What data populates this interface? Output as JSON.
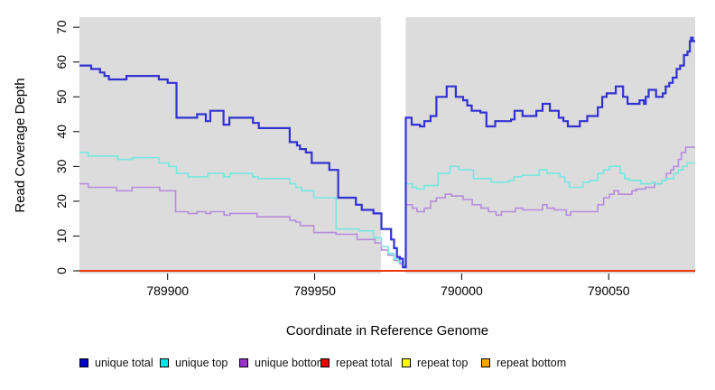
{
  "chart_data": {
    "type": "line",
    "line_style": "step",
    "title": "",
    "xlabel": "Coordinate in Reference Genome",
    "ylabel": "Read Coverage Depth",
    "xlim": [
      789870,
      790079.4
    ],
    "ylim": [
      0,
      73
    ],
    "x_ticks": [
      789900,
      789950,
      790000,
      790050
    ],
    "y_ticks": [
      0,
      10,
      20,
      30,
      40,
      50,
      60,
      70
    ],
    "grid": false,
    "plot_background": "#DCDCDC",
    "page_background": "#FFFFFF",
    "gap_band": {
      "x_start": 789972.5,
      "x_end": 789981,
      "color": "#FFFFFF"
    },
    "legend_position": "bottom",
    "series": [
      {
        "name": "unique total",
        "color": "#0000CD",
        "line_color": "#3232D2",
        "line_width": 2.2,
        "points": [
          [
            789870,
            59
          ],
          [
            789874,
            58
          ],
          [
            789877,
            57
          ],
          [
            789878.5,
            56
          ],
          [
            789880,
            55
          ],
          [
            789886,
            56
          ],
          [
            789897,
            55
          ],
          [
            789900,
            54
          ],
          [
            789903,
            44
          ],
          [
            789910,
            45
          ],
          [
            789913,
            43
          ],
          [
            789914.5,
            46
          ],
          [
            789919,
            42
          ],
          [
            789921,
            44
          ],
          [
            789929,
            42.5
          ],
          [
            789931,
            41
          ],
          [
            789941.5,
            37
          ],
          [
            789944,
            36
          ],
          [
            789945,
            35
          ],
          [
            789947,
            34
          ],
          [
            789949,
            31
          ],
          [
            789955,
            29
          ],
          [
            789958,
            21
          ],
          [
            789964,
            19
          ],
          [
            789966,
            17.5
          ],
          [
            789970,
            16.5
          ],
          [
            789972.7,
            12
          ],
          [
            789976,
            9
          ],
          [
            789977,
            6.5
          ],
          [
            789978,
            4
          ],
          [
            789979,
            3.5
          ],
          [
            789980,
            1
          ],
          [
            789981,
            44
          ],
          [
            789983,
            42
          ],
          [
            789985.8,
            41.5
          ],
          [
            789987.3,
            43
          ],
          [
            789989.4,
            44.5
          ],
          [
            789991.4,
            50
          ],
          [
            789994.9,
            53
          ],
          [
            789998,
            50
          ],
          [
            790000.5,
            49
          ],
          [
            790001.9,
            47.5
          ],
          [
            790003.4,
            46
          ],
          [
            790006.4,
            45.5
          ],
          [
            790008.4,
            41.5
          ],
          [
            790011.4,
            43
          ],
          [
            790016.8,
            43.5
          ],
          [
            790018,
            46
          ],
          [
            790020.7,
            44.5
          ],
          [
            790025.4,
            46
          ],
          [
            790027.5,
            48
          ],
          [
            790030,
            46
          ],
          [
            790033,
            44
          ],
          [
            790034.6,
            43
          ],
          [
            790036.1,
            41.5
          ],
          [
            790040.2,
            43
          ],
          [
            790042.7,
            44.5
          ],
          [
            790046.3,
            47
          ],
          [
            790047.8,
            50
          ],
          [
            790049.3,
            51
          ],
          [
            790052.4,
            53
          ],
          [
            790054.9,
            50
          ],
          [
            790056.4,
            48
          ],
          [
            790060.5,
            49
          ],
          [
            790062,
            48
          ],
          [
            790062.6,
            50
          ],
          [
            790063.6,
            52
          ],
          [
            790066.1,
            50
          ],
          [
            790068.4,
            51
          ],
          [
            790069.4,
            53
          ],
          [
            790070.6,
            54
          ],
          [
            790071.8,
            55.5
          ],
          [
            790073.1,
            58
          ],
          [
            790074.3,
            59
          ],
          [
            790075.6,
            62
          ],
          [
            790076.8,
            63
          ],
          [
            790077.6,
            66
          ],
          [
            790078,
            67
          ],
          [
            790078.6,
            66
          ]
        ]
      },
      {
        "name": "unique top",
        "color": "#00E5E5",
        "line_color": "#76E7E0",
        "line_width": 1.6,
        "points": [
          [
            789870,
            34
          ],
          [
            789873,
            33
          ],
          [
            789883,
            32
          ],
          [
            789888,
            32.5
          ],
          [
            789897,
            31
          ],
          [
            789900.4,
            30
          ],
          [
            789903,
            28
          ],
          [
            789907,
            27
          ],
          [
            789913.6,
            28
          ],
          [
            789919.2,
            27
          ],
          [
            789921.2,
            28
          ],
          [
            789928.9,
            27
          ],
          [
            789930.9,
            26.5
          ],
          [
            789941.6,
            25
          ],
          [
            789943.6,
            24
          ],
          [
            789945.6,
            23
          ],
          [
            789949.7,
            21
          ],
          [
            789957.3,
            12
          ],
          [
            789965,
            11.5
          ],
          [
            789970,
            9.5
          ],
          [
            789972.7,
            7
          ],
          [
            789975,
            5
          ],
          [
            789977,
            3.5
          ],
          [
            789978.5,
            2.5
          ],
          [
            789980,
            1.5
          ],
          [
            789981,
            25
          ],
          [
            789983.2,
            24
          ],
          [
            789984.8,
            23.5
          ],
          [
            789987.3,
            24.5
          ],
          [
            789992,
            28
          ],
          [
            789996,
            30
          ],
          [
            789999,
            29
          ],
          [
            790004,
            26.5
          ],
          [
            790010,
            25.5
          ],
          [
            790016,
            26
          ],
          [
            790017.8,
            27
          ],
          [
            790020.4,
            27.5
          ],
          [
            790026.4,
            29
          ],
          [
            790029,
            28
          ],
          [
            790033.5,
            27
          ],
          [
            790035.1,
            25.5
          ],
          [
            790036.6,
            24
          ],
          [
            790041.2,
            25.5
          ],
          [
            790043.7,
            26
          ],
          [
            790046.3,
            28
          ],
          [
            790048.3,
            29
          ],
          [
            790050.3,
            30
          ],
          [
            790053.9,
            28
          ],
          [
            790055.4,
            26.5
          ],
          [
            790056.9,
            26
          ],
          [
            790061,
            25
          ],
          [
            790064.6,
            25.5
          ],
          [
            790066,
            25
          ],
          [
            790068.1,
            26
          ],
          [
            790069.6,
            26.5
          ],
          [
            790072.1,
            28
          ],
          [
            790073.7,
            29
          ],
          [
            790075.2,
            30
          ],
          [
            790076.7,
            31
          ]
        ]
      },
      {
        "name": "unique bottom",
        "color": "#9932CC",
        "line_color": "#B78CDC",
        "line_width": 1.6,
        "points": [
          [
            789870,
            25
          ],
          [
            789873,
            24
          ],
          [
            789882.6,
            23
          ],
          [
            789887.9,
            24
          ],
          [
            789897.3,
            23
          ],
          [
            789902.7,
            17
          ],
          [
            789907,
            16.5
          ],
          [
            789910,
            17
          ],
          [
            789913,
            16.5
          ],
          [
            789914.6,
            17
          ],
          [
            789919.2,
            16
          ],
          [
            789921.2,
            16.5
          ],
          [
            789930.4,
            15.5
          ],
          [
            789941.6,
            14.5
          ],
          [
            789943.6,
            14
          ],
          [
            789945.1,
            13
          ],
          [
            789949.7,
            11
          ],
          [
            789957.3,
            10.5
          ],
          [
            789964.4,
            9
          ],
          [
            789970.5,
            8
          ],
          [
            789972.7,
            6
          ],
          [
            789975,
            4.5
          ],
          [
            789977,
            3
          ],
          [
            789979,
            2
          ],
          [
            789980,
            1
          ],
          [
            789981,
            19
          ],
          [
            789983.2,
            18
          ],
          [
            789984.8,
            17
          ],
          [
            789987.3,
            18
          ],
          [
            789989.4,
            20
          ],
          [
            789991.4,
            21
          ],
          [
            789994.4,
            22
          ],
          [
            789996.6,
            21.5
          ],
          [
            790000.5,
            20.5
          ],
          [
            790003.6,
            19
          ],
          [
            790006.6,
            18
          ],
          [
            790009.1,
            17
          ],
          [
            790011.7,
            16
          ],
          [
            790013.5,
            17
          ],
          [
            790016.8,
            17
          ],
          [
            790018.3,
            18
          ],
          [
            790020.8,
            17.5
          ],
          [
            790027.5,
            19
          ],
          [
            790029,
            18
          ],
          [
            790031.5,
            17.5
          ],
          [
            790035.6,
            16
          ],
          [
            790037.1,
            17
          ],
          [
            790046.3,
            19
          ],
          [
            790048.3,
            21
          ],
          [
            790050.3,
            22
          ],
          [
            790051.8,
            23
          ],
          [
            790053.4,
            22
          ],
          [
            790057.9,
            23
          ],
          [
            790059.4,
            23.5
          ],
          [
            790062.5,
            24
          ],
          [
            790065.6,
            25
          ],
          [
            790068.1,
            26
          ],
          [
            790069.6,
            28
          ],
          [
            790071.1,
            29
          ],
          [
            790072.1,
            30
          ],
          [
            790073.7,
            32
          ],
          [
            790074.7,
            34
          ],
          [
            790076.2,
            35.5
          ]
        ]
      },
      {
        "name": "repeat total",
        "color": "#E60000",
        "line_color": "#E60000",
        "line_width": 1.6,
        "points": [
          [
            789870,
            0
          ]
        ]
      },
      {
        "name": "repeat top",
        "color": "#FFFF00",
        "line_color": "#FFFF00",
        "line_width": 1.6,
        "points": [
          [
            789870,
            0
          ]
        ]
      },
      {
        "name": "repeat bottom",
        "color": "#FFA500",
        "line_color": "#FFA500",
        "line_width": 1.8,
        "points": [
          [
            789870,
            0
          ]
        ]
      }
    ]
  }
}
